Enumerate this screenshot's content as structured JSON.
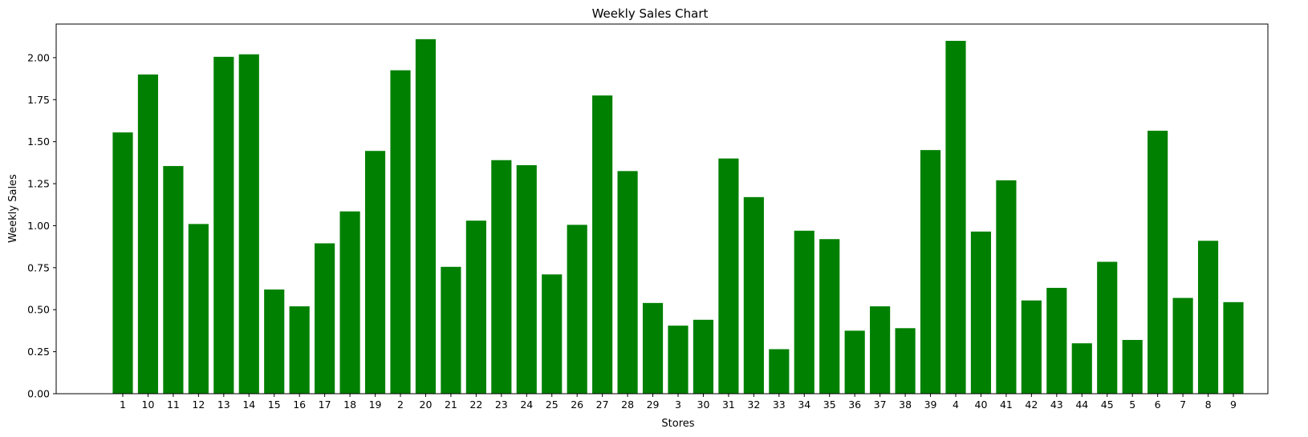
{
  "chart_data": {
    "type": "bar",
    "title": "Weekly Sales Chart",
    "xlabel": "Stores",
    "ylabel": "Weekly Sales",
    "ylim": [
      0,
      2.2
    ],
    "yticks": [
      "0.00",
      "0.25",
      "0.50",
      "0.75",
      "1.00",
      "1.25",
      "1.50",
      "1.75",
      "2.00"
    ],
    "grid": false,
    "bar_color": "#008000",
    "categories": [
      "1",
      "10",
      "11",
      "12",
      "13",
      "14",
      "15",
      "16",
      "17",
      "18",
      "19",
      "2",
      "20",
      "21",
      "22",
      "23",
      "24",
      "25",
      "26",
      "27",
      "28",
      "29",
      "3",
      "30",
      "31",
      "32",
      "33",
      "34",
      "35",
      "36",
      "37",
      "38",
      "39",
      "4",
      "40",
      "41",
      "42",
      "43",
      "44",
      "45",
      "5",
      "6",
      "7",
      "8",
      "9"
    ],
    "values": [
      1.555,
      1.9,
      1.355,
      1.01,
      2.005,
      2.02,
      0.62,
      0.52,
      0.895,
      1.085,
      1.445,
      1.925,
      2.11,
      0.755,
      1.03,
      1.39,
      1.36,
      0.71,
      1.005,
      1.775,
      1.325,
      0.54,
      0.405,
      0.44,
      1.4,
      1.17,
      0.265,
      0.97,
      0.92,
      0.375,
      0.52,
      0.39,
      1.45,
      2.1,
      0.965,
      1.27,
      0.555,
      0.63,
      0.3,
      0.785,
      0.32,
      1.565,
      0.57,
      0.91,
      0.545
    ]
  }
}
